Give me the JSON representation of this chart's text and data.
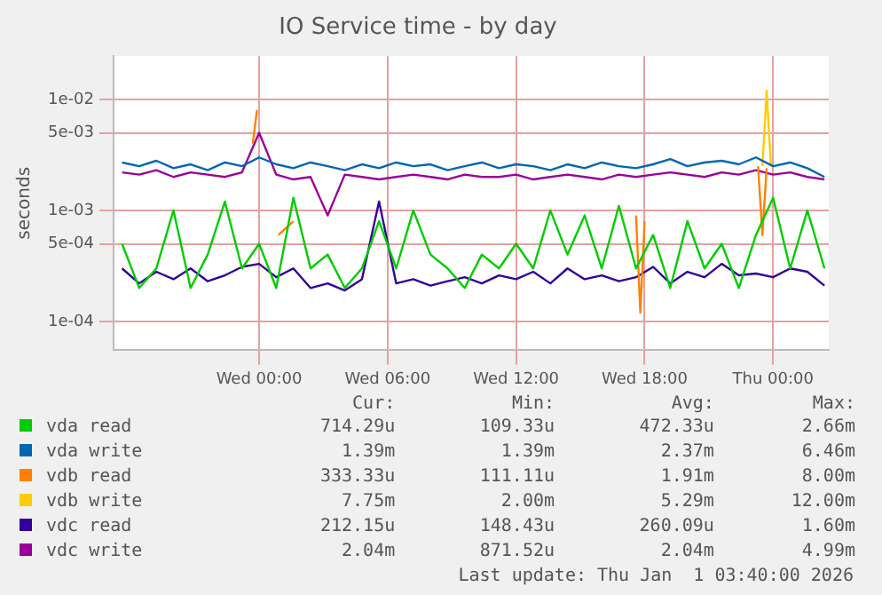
{
  "chart_data": {
    "type": "line",
    "title": "IO Service time - by day",
    "ylabel": "seconds",
    "xlim": [
      "2025-12-30T17:12",
      "2026-01-01T02:36"
    ],
    "xticks": [
      {
        "value": "2025-12-31T00:00",
        "label": "Wed 00:00"
      },
      {
        "value": "2025-12-31T06:00",
        "label": "Wed 06:00"
      },
      {
        "value": "2025-12-31T12:00",
        "label": "Wed 12:00"
      },
      {
        "value": "2025-12-31T18:00",
        "label": "Wed 18:00"
      },
      {
        "value": "2026-01-01T00:00",
        "label": "Thu 00:00"
      }
    ],
    "ylim": [
      5.5e-05,
      0.0245
    ],
    "yticks": [
      {
        "value": 0.0001,
        "label": "1e-04"
      },
      {
        "value": 0.0005,
        "label": "5e-04"
      },
      {
        "value": 0.001,
        "label": "1e-03"
      },
      {
        "value": 0.005,
        "label": "5e-03"
      },
      {
        "value": 0.01,
        "label": "1e-02"
      }
    ],
    "log": "y",
    "grid": true,
    "legend": "bottom",
    "marker": "none",
    "line_style": "solid",
    "x": [
      "2025-12-30T17:36",
      "2025-12-30T18:24",
      "2025-12-30T19:12",
      "2025-12-30T20:00",
      "2025-12-30T20:48",
      "2025-12-30T21:36",
      "2025-12-30T22:24",
      "2025-12-30T23:12",
      "2025-12-31T00:00",
      "2025-12-31T00:48",
      "2025-12-31T01:36",
      "2025-12-31T02:24",
      "2025-12-31T03:12",
      "2025-12-31T04:00",
      "2025-12-31T04:48",
      "2025-12-31T05:36",
      "2025-12-31T06:24",
      "2025-12-31T07:12",
      "2025-12-31T08:00",
      "2025-12-31T08:48",
      "2025-12-31T09:36",
      "2025-12-31T10:24",
      "2025-12-31T11:12",
      "2025-12-31T12:00",
      "2025-12-31T12:48",
      "2025-12-31T13:36",
      "2025-12-31T14:24",
      "2025-12-31T15:12",
      "2025-12-31T16:00",
      "2025-12-31T16:48",
      "2025-12-31T17:36",
      "2025-12-31T18:24",
      "2025-12-31T19:12",
      "2025-12-31T20:00",
      "2025-12-31T20:48",
      "2025-12-31T21:36",
      "2025-12-31T22:24",
      "2025-12-31T23:12",
      "2026-01-01T00:00",
      "2026-01-01T00:48",
      "2026-01-01T01:36",
      "2026-01-01T02:24"
    ],
    "series": [
      {
        "name": "vda read",
        "color": "#00cc00",
        "values": [
          0.0005,
          0.0002,
          0.0003,
          0.001,
          0.0002,
          0.0004,
          0.0012,
          0.0003,
          0.0005,
          0.0002,
          0.0013,
          0.0003,
          0.0004,
          0.0002,
          0.0003,
          0.0008,
          0.0003,
          0.001,
          0.0004,
          0.0003,
          0.0002,
          0.0004,
          0.0003,
          0.0005,
          0.0003,
          0.001,
          0.0004,
          0.0009,
          0.0003,
          0.0011,
          0.0003,
          0.0006,
          0.0002,
          0.0008,
          0.0003,
          0.0005,
          0.0002,
          0.0006,
          0.0013,
          0.0003,
          0.001,
          0.0003
        ]
      },
      {
        "name": "vda write",
        "color": "#0066b3",
        "values": [
          0.0027,
          0.0025,
          0.0028,
          0.0024,
          0.0026,
          0.0023,
          0.0027,
          0.0025,
          0.003,
          0.0026,
          0.0024,
          0.0027,
          0.0025,
          0.0023,
          0.0026,
          0.0024,
          0.0027,
          0.0025,
          0.0026,
          0.0023,
          0.0025,
          0.0027,
          0.0024,
          0.0026,
          0.0025,
          0.0023,
          0.0026,
          0.0024,
          0.0027,
          0.0025,
          0.0024,
          0.0026,
          0.0029,
          0.0025,
          0.0027,
          0.0028,
          0.0026,
          0.003,
          0.0025,
          0.0027,
          0.0024,
          0.002
        ]
      },
      {
        "name": "vdb read",
        "color": "#ff8000",
        "x": [
          "2025-12-30T23:42",
          "2025-12-30T23:54",
          "2025-12-31T00:30",
          "2025-12-31T00:54",
          "2025-12-31T01:36",
          "2025-12-31T02:00",
          "2025-12-31T17:36",
          "2025-12-31T17:48",
          "2025-12-31T18:00",
          "2025-12-31T18:24",
          "2025-12-31T23:18",
          "2025-12-31T23:30",
          "2025-12-31T23:42"
        ],
        "values": [
          0.004,
          0.008,
          null,
          0.0006,
          0.0008,
          null,
          0.0009,
          0.00012,
          0.0008,
          null,
          0.0025,
          0.0006,
          0.0024
        ]
      },
      {
        "name": "vdb write",
        "color": "#ffcc00",
        "x": [
          "2025-12-31T23:30",
          "2025-12-31T23:42",
          "2025-12-31T23:54"
        ],
        "values": [
          0.0025,
          0.012,
          0.0025
        ]
      },
      {
        "name": "vdc read",
        "color": "#330099",
        "values": [
          0.0003,
          0.00022,
          0.00028,
          0.00024,
          0.0003,
          0.00023,
          0.00026,
          0.00031,
          0.00033,
          0.00025,
          0.0003,
          0.0002,
          0.00022,
          0.00019,
          0.00024,
          0.0012,
          0.00022,
          0.00024,
          0.00021,
          0.00023,
          0.00025,
          0.00022,
          0.00026,
          0.00024,
          0.00028,
          0.00022,
          0.0003,
          0.00024,
          0.00026,
          0.00023,
          0.00025,
          0.00031,
          0.00022,
          0.00028,
          0.00025,
          0.00033,
          0.00026,
          0.00027,
          0.00025,
          0.0003,
          0.00028,
          0.00021
        ]
      },
      {
        "name": "vdc write",
        "color": "#990099",
        "values": [
          0.0022,
          0.0021,
          0.0023,
          0.002,
          0.0022,
          0.0021,
          0.002,
          0.0022,
          0.005,
          0.0021,
          0.0019,
          0.002,
          0.0009,
          0.0021,
          0.002,
          0.0019,
          0.002,
          0.0021,
          0.002,
          0.0019,
          0.0021,
          0.002,
          0.002,
          0.0021,
          0.0019,
          0.002,
          0.0021,
          0.002,
          0.0019,
          0.0021,
          0.002,
          0.0021,
          0.0022,
          0.0021,
          0.002,
          0.0022,
          0.0021,
          0.0023,
          0.0021,
          0.0022,
          0.002,
          0.0019
        ]
      }
    ],
    "annotations": [
      "Cur:",
      "Min:",
      "Avg:",
      "Max:",
      "714.29u",
      "109.33u",
      "472.33u",
      "2.66m",
      "1.39m",
      "1.39m",
      "2.37m",
      "6.46m",
      "333.33u",
      "111.11u",
      "1.91m",
      "8.00m",
      "7.75m",
      "2.00m",
      "5.29m",
      "12.00m",
      "212.15u",
      "148.43u",
      "260.09u",
      "1.60m",
      "2.04m",
      "871.52u",
      "2.04m",
      "4.99m",
      "Last update: Thu Jan  1 03:40:00 2026"
    ]
  }
}
